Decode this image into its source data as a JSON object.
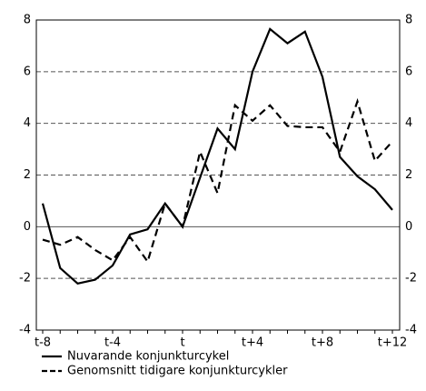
{
  "chart_data": {
    "type": "line",
    "categories": [
      "t-8",
      null,
      null,
      null,
      "t-4",
      null,
      null,
      null,
      "t",
      null,
      null,
      null,
      "t+4",
      null,
      null,
      null,
      "t+8",
      null,
      null,
      null,
      "t+12"
    ],
    "series": [
      {
        "name": "Nuvarande konjunkturcykel",
        "color": "#000000",
        "dash": false,
        "values": [
          0.9,
          -1.6,
          -2.2,
          -2.05,
          -1.5,
          -0.3,
          -0.1,
          0.9,
          0.0,
          1.9,
          3.8,
          3.0,
          6.0,
          7.65,
          7.1,
          7.55,
          5.8,
          2.7,
          1.95,
          1.45,
          0.65
        ]
      },
      {
        "name": "Genomsnitt tidigare konjunkturcykler",
        "color": "#000000",
        "dash": true,
        "values": [
          -0.5,
          -0.7,
          -0.4,
          -0.9,
          -1.3,
          -0.4,
          -1.35,
          0.9,
          0.0,
          2.9,
          1.3,
          4.7,
          4.1,
          4.7,
          3.9,
          3.85,
          3.85,
          2.9,
          4.85,
          2.55,
          3.3
        ]
      }
    ],
    "ylim": [
      -4,
      8
    ],
    "yticks": [
      -4,
      -2,
      0,
      2,
      4,
      6,
      8
    ],
    "grid": true,
    "legend": "bottom"
  }
}
